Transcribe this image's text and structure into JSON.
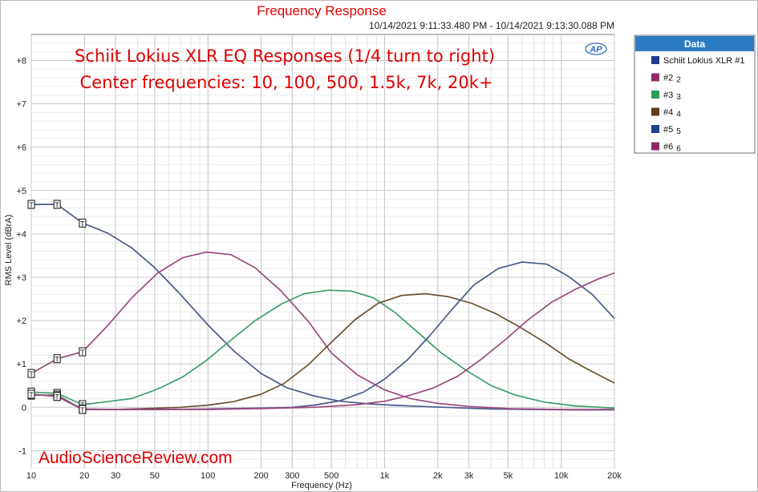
{
  "window": {
    "title": "Frequency Response",
    "timestamp": "10/14/2021 9:11:33.480 PM - 10/14/2021 9:13:30.088 PM"
  },
  "annotations": {
    "line1": "Schiit Lokius XLR EQ Responses (1/4 turn to right)",
    "line2": "Center frequencies: 10, 100, 500, 1.5k, 7k, 20k+",
    "watermark": "AudioScienceReview.com",
    "ap_logo": "AP"
  },
  "legend": {
    "header": "Data",
    "placement": "right-outside",
    "items": [
      {
        "label": "Schiit Lokius XLR #1",
        "sub": "",
        "color": "#1f3f8c"
      },
      {
        "label": "#2",
        "sub": "2",
        "color": "#8e2a6a"
      },
      {
        "label": "#3",
        "sub": "3",
        "color": "#2e9e5e"
      },
      {
        "label": "#4",
        "sub": "4",
        "color": "#5a3e1e"
      },
      {
        "label": "#5",
        "sub": "5",
        "color": "#1f3f8c"
      },
      {
        "label": "#6",
        "sub": "6",
        "color": "#8e2a6a"
      }
    ]
  },
  "chart_data": {
    "type": "line",
    "title": "Frequency Response",
    "xlabel": "Frequency (Hz)",
    "ylabel": "RMS Level (dBrA)",
    "xscale": "log",
    "xlim": [
      10,
      20000
    ],
    "ylim": [
      -1.4,
      8.6
    ],
    "grid": true,
    "x_ticks": [
      10,
      20,
      30,
      50,
      100,
      200,
      300,
      500,
      1000,
      2000,
      3000,
      5000,
      10000,
      20000
    ],
    "x_tick_labels": [
      "10",
      "20",
      "30",
      "50",
      "100",
      "200",
      "300",
      "500",
      "1k",
      "2k",
      "3k",
      "5k",
      "10k",
      "20k"
    ],
    "y_ticks": [
      -1,
      0,
      1,
      2,
      3,
      4,
      5,
      6,
      7,
      8
    ],
    "y_tick_labels": [
      "-1",
      "0",
      "+1",
      "+2",
      "+3",
      "+4",
      "+5",
      "+6",
      "+7",
      "+8"
    ],
    "marker_label": "T",
    "series": [
      {
        "name": "Schiit Lokius XLR #1",
        "color": "#4a5a8c",
        "markers": [
          [
            10,
            4.68
          ],
          [
            14,
            4.68
          ],
          [
            19.5,
            4.25
          ]
        ],
        "points": [
          [
            10,
            4.68
          ],
          [
            14,
            4.68
          ],
          [
            19.5,
            4.25
          ],
          [
            27,
            4.02
          ],
          [
            37,
            3.68
          ],
          [
            50,
            3.22
          ],
          [
            70,
            2.6
          ],
          [
            100,
            1.9
          ],
          [
            140,
            1.3
          ],
          [
            200,
            0.78
          ],
          [
            280,
            0.45
          ],
          [
            400,
            0.26
          ],
          [
            560,
            0.14
          ],
          [
            800,
            0.08
          ],
          [
            1100,
            0.05
          ],
          [
            1600,
            0.02
          ],
          [
            2500,
            -0.01
          ],
          [
            4000,
            -0.04
          ],
          [
            7000,
            -0.05
          ],
          [
            12000,
            -0.06
          ],
          [
            20000,
            -0.06
          ]
        ]
      },
      {
        "name": "#2",
        "color": "#9c4a7e",
        "markers": [
          [
            10,
            0.78
          ],
          [
            14,
            1.12
          ],
          [
            19.5,
            1.28
          ]
        ],
        "points": [
          [
            10,
            0.78
          ],
          [
            14,
            1.12
          ],
          [
            19.5,
            1.28
          ],
          [
            27,
            1.88
          ],
          [
            37,
            2.52
          ],
          [
            52,
            3.1
          ],
          [
            72,
            3.45
          ],
          [
            98,
            3.58
          ],
          [
            135,
            3.52
          ],
          [
            185,
            3.22
          ],
          [
            260,
            2.68
          ],
          [
            370,
            1.98
          ],
          [
            500,
            1.25
          ],
          [
            700,
            0.75
          ],
          [
            1000,
            0.4
          ],
          [
            1400,
            0.2
          ],
          [
            2000,
            0.09
          ],
          [
            3000,
            0.02
          ],
          [
            5000,
            -0.03
          ],
          [
            10000,
            -0.05
          ],
          [
            20000,
            -0.05
          ]
        ]
      },
      {
        "name": "#3",
        "color": "#3e9e6a",
        "markers": [
          [
            10,
            0.35
          ],
          [
            14,
            0.32
          ],
          [
            19.5,
            0.06
          ]
        ],
        "points": [
          [
            10,
            0.35
          ],
          [
            14,
            0.32
          ],
          [
            19.5,
            0.06
          ],
          [
            27,
            0.13
          ],
          [
            37,
            0.2
          ],
          [
            52,
            0.42
          ],
          [
            72,
            0.7
          ],
          [
            98,
            1.08
          ],
          [
            135,
            1.55
          ],
          [
            185,
            2.0
          ],
          [
            260,
            2.38
          ],
          [
            350,
            2.62
          ],
          [
            480,
            2.7
          ],
          [
            650,
            2.68
          ],
          [
            870,
            2.52
          ],
          [
            1150,
            2.18
          ],
          [
            1550,
            1.72
          ],
          [
            2100,
            1.25
          ],
          [
            2900,
            0.85
          ],
          [
            4000,
            0.5
          ],
          [
            5500,
            0.28
          ],
          [
            8000,
            0.12
          ],
          [
            12000,
            0.03
          ],
          [
            20000,
            -0.02
          ]
        ]
      },
      {
        "name": "#4",
        "color": "#6a5234",
        "markers": [
          [
            10,
            0.28
          ],
          [
            14,
            0.28
          ],
          [
            19.5,
            -0.05
          ]
        ],
        "points": [
          [
            10,
            0.28
          ],
          [
            14,
            0.28
          ],
          [
            19.5,
            -0.05
          ],
          [
            30,
            -0.05
          ],
          [
            45,
            -0.03
          ],
          [
            70,
            0.0
          ],
          [
            100,
            0.05
          ],
          [
            140,
            0.13
          ],
          [
            200,
            0.3
          ],
          [
            270,
            0.55
          ],
          [
            370,
            0.98
          ],
          [
            500,
            1.5
          ],
          [
            680,
            2.02
          ],
          [
            920,
            2.4
          ],
          [
            1250,
            2.58
          ],
          [
            1700,
            2.62
          ],
          [
            2300,
            2.55
          ],
          [
            3100,
            2.4
          ],
          [
            4300,
            2.15
          ],
          [
            6000,
            1.82
          ],
          [
            8200,
            1.48
          ],
          [
            11000,
            1.12
          ],
          [
            15000,
            0.82
          ],
          [
            20000,
            0.56
          ]
        ]
      },
      {
        "name": "#5",
        "color": "#4a5a8c",
        "markers": [
          [
            10,
            0.3
          ],
          [
            14,
            0.25
          ],
          [
            19.5,
            -0.04
          ]
        ],
        "points": [
          [
            10,
            0.3
          ],
          [
            14,
            0.25
          ],
          [
            19.5,
            -0.04
          ],
          [
            30,
            -0.05
          ],
          [
            50,
            -0.05
          ],
          [
            100,
            -0.04
          ],
          [
            200,
            -0.02
          ],
          [
            300,
            0.0
          ],
          [
            400,
            0.05
          ],
          [
            560,
            0.15
          ],
          [
            760,
            0.35
          ],
          [
            1000,
            0.65
          ],
          [
            1350,
            1.1
          ],
          [
            1800,
            1.65
          ],
          [
            2400,
            2.25
          ],
          [
            3200,
            2.82
          ],
          [
            4400,
            3.2
          ],
          [
            6000,
            3.35
          ],
          [
            8300,
            3.3
          ],
          [
            11000,
            3.02
          ],
          [
            15000,
            2.6
          ],
          [
            20000,
            2.05
          ]
        ]
      },
      {
        "name": "#6",
        "color": "#9c4a7e",
        "markers": [
          [
            10,
            0.3
          ],
          [
            14,
            0.25
          ],
          [
            19.5,
            -0.05
          ]
        ],
        "points": [
          [
            10,
            0.3
          ],
          [
            14,
            0.25
          ],
          [
            19.5,
            -0.05
          ],
          [
            30,
            -0.05
          ],
          [
            50,
            -0.05
          ],
          [
            100,
            -0.05
          ],
          [
            200,
            -0.03
          ],
          [
            400,
            0.0
          ],
          [
            700,
            0.06
          ],
          [
            1000,
            0.14
          ],
          [
            1400,
            0.28
          ],
          [
            1900,
            0.45
          ],
          [
            2600,
            0.72
          ],
          [
            3500,
            1.1
          ],
          [
            4800,
            1.55
          ],
          [
            6500,
            2.02
          ],
          [
            8800,
            2.42
          ],
          [
            12000,
            2.72
          ],
          [
            16000,
            2.95
          ],
          [
            20000,
            3.1
          ]
        ]
      }
    ]
  }
}
